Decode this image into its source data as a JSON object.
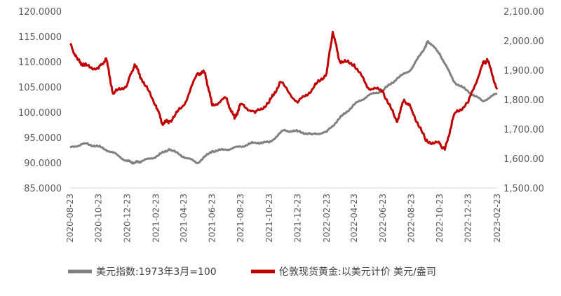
{
  "chart_data": {
    "type": "line",
    "title": "",
    "x_ticks": [
      "2020-08-23",
      "2020-10-23",
      "2020-12-23",
      "2021-02-23",
      "2021-04-23",
      "2021-06-23",
      "2021-08-23",
      "2021-10-23",
      "2021-12-23",
      "2022-02-23",
      "2022-04-23",
      "2022-06-23",
      "2022-08-23",
      "2022-10-23",
      "2022-12-23",
      "2023-02-23"
    ],
    "y_left": {
      "ylim": [
        85,
        120
      ],
      "ticks": [
        85,
        90,
        95,
        100,
        105,
        110,
        115,
        120
      ],
      "tick_labels": [
        "85.0000",
        "90.0000",
        "95.0000",
        "100.0000",
        "105.0000",
        "110.0000",
        "115.0000",
        "120.0000"
      ]
    },
    "y_right": {
      "ylim": [
        1500,
        2100
      ],
      "ticks": [
        1500,
        1600,
        1700,
        1800,
        1900,
        2000,
        2100
      ],
      "tick_labels": [
        "1,500.00",
        "1,600.00",
        "1,700.00",
        "1,800.00",
        "1,900.00",
        "2,000.00",
        "2,100.00"
      ]
    },
    "grid": false,
    "legend_position": "bottom",
    "series": [
      {
        "name": "美元指数:1973年3月=100",
        "axis": "left",
        "color": "#808080",
        "x": [
          "2020-08-23",
          "2020-09-23",
          "2020-10-23",
          "2020-11-23",
          "2020-12-23",
          "2021-01-08",
          "2021-01-23",
          "2021-02-23",
          "2021-03-23",
          "2021-04-23",
          "2021-05-23",
          "2021-06-23",
          "2021-07-23",
          "2021-08-23",
          "2021-09-23",
          "2021-10-23",
          "2021-11-23",
          "2021-12-23",
          "2022-01-23",
          "2022-02-23",
          "2022-03-23",
          "2022-04-23",
          "2022-05-23",
          "2022-06-23",
          "2022-07-23",
          "2022-08-23",
          "2022-09-23",
          "2022-09-28",
          "2022-10-23",
          "2022-11-23",
          "2022-12-23",
          "2023-01-23",
          "2023-02-23"
        ],
        "values": [
          93.0,
          93.8,
          93.2,
          92.0,
          90.3,
          90.0,
          90.3,
          91.2,
          92.7,
          91.2,
          90.0,
          92.3,
          92.6,
          93.2,
          94.0,
          94.0,
          96.4,
          96.2,
          95.6,
          96.1,
          98.8,
          101.5,
          103.3,
          104.3,
          106.6,
          108.5,
          113.1,
          114.1,
          111.6,
          106.0,
          104.1,
          102.2,
          103.7
        ]
      },
      {
        "name": "伦敦现货黄金:以美元计价 美元/盎司",
        "axis": "right",
        "color": "#c00000",
        "x": [
          "2020-08-23",
          "2020-09-08",
          "2020-09-23",
          "2020-10-23",
          "2020-11-08",
          "2020-11-23",
          "2020-12-23",
          "2021-01-08",
          "2021-01-23",
          "2021-02-23",
          "2021-03-08",
          "2021-03-23",
          "2021-04-23",
          "2021-05-23",
          "2021-06-08",
          "2021-06-23",
          "2021-07-23",
          "2021-08-10",
          "2021-08-23",
          "2021-09-23",
          "2021-10-23",
          "2021-11-16",
          "2021-12-23",
          "2022-01-23",
          "2022-02-23",
          "2022-03-08",
          "2022-03-23",
          "2022-04-23",
          "2022-05-23",
          "2022-06-23",
          "2022-07-23",
          "2022-08-08",
          "2022-08-23",
          "2022-09-23",
          "2022-10-23",
          "2022-11-03",
          "2022-11-23",
          "2022-12-23",
          "2023-01-23",
          "2023-02-02",
          "2023-02-23"
        ],
        "values": [
          1990,
          1935,
          1915,
          1905,
          1940,
          1820,
          1850,
          1920,
          1870,
          1780,
          1720,
          1725,
          1780,
          1890,
          1890,
          1780,
          1805,
          1735,
          1785,
          1755,
          1790,
          1860,
          1790,
          1835,
          1890,
          2030,
          1930,
          1920,
          1840,
          1830,
          1725,
          1800,
          1770,
          1660,
          1650,
          1630,
          1750,
          1790,
          1920,
          1935,
          1835
        ]
      }
    ]
  }
}
